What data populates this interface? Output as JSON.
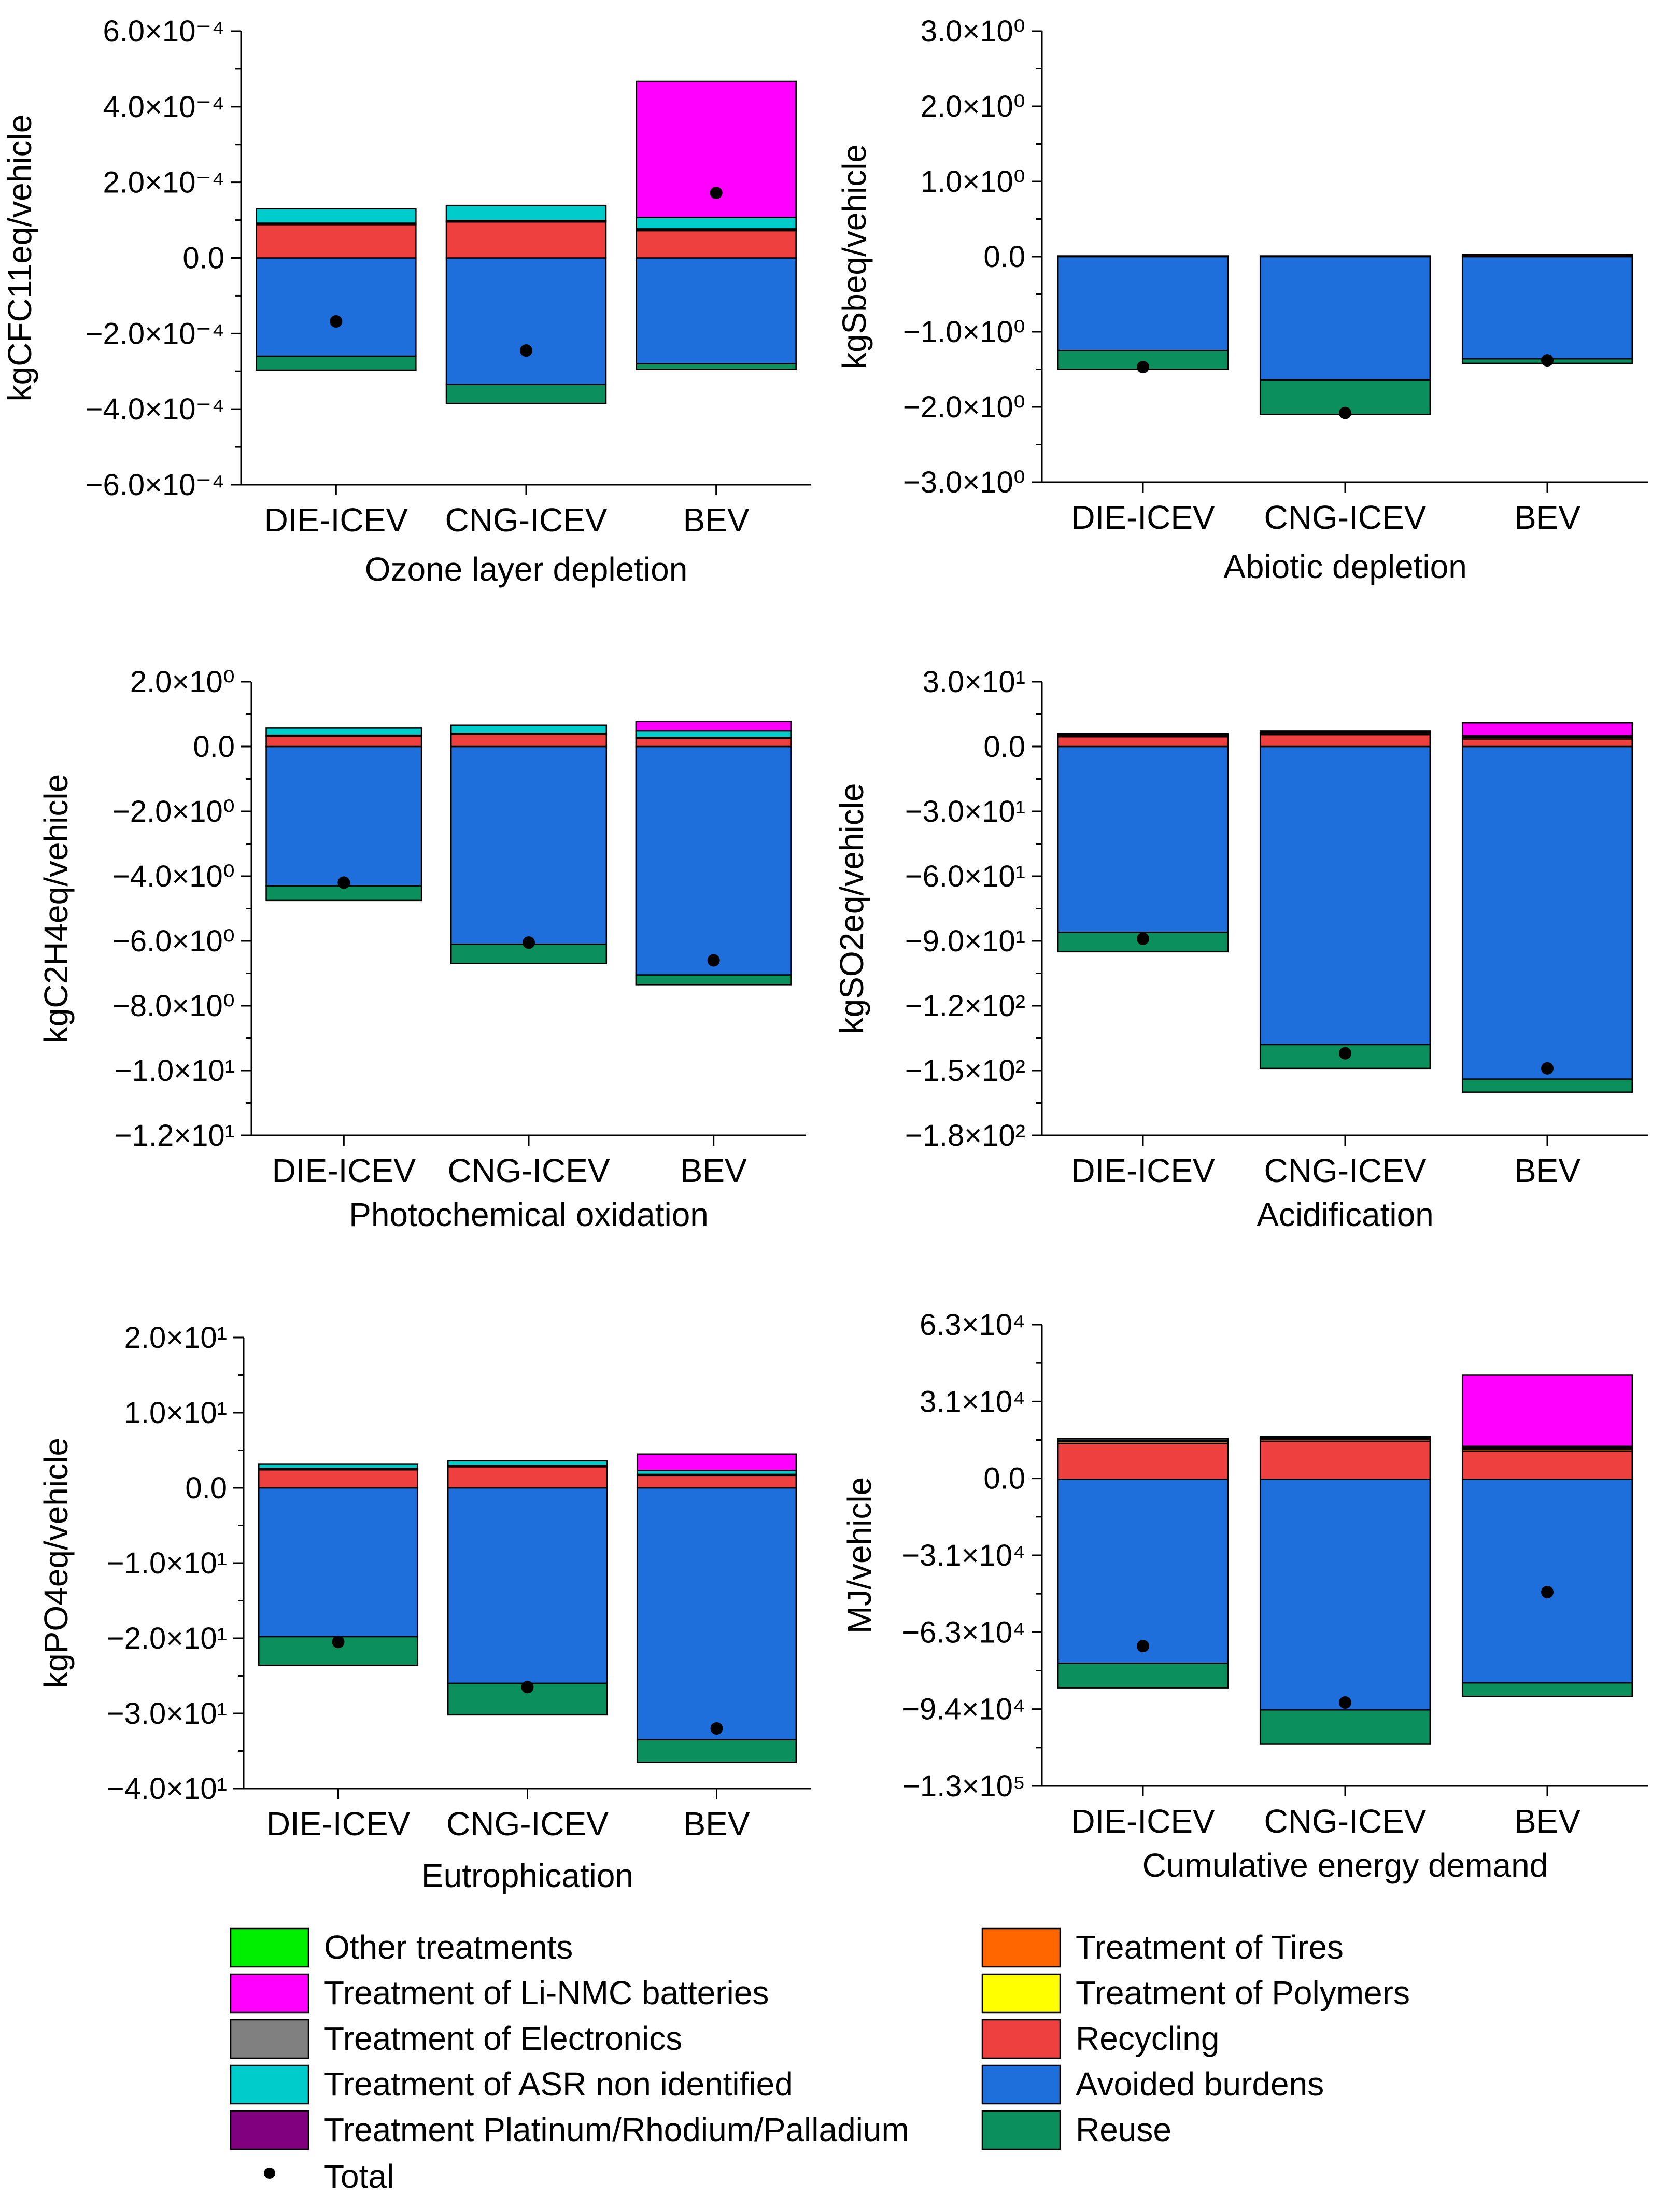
{
  "legend": {
    "items": [
      {
        "label": "Other treatments",
        "color": "#00ee00"
      },
      {
        "label": "Treatment of Tires",
        "color": "#ff6600"
      },
      {
        "label": "Treatment of Li-NMC batteries",
        "color": "#ff00ff"
      },
      {
        "label": "Treatment of Polymers",
        "color": "#ffff00"
      },
      {
        "label": "Treatment of Electronics",
        "color": "#808080"
      },
      {
        "label": "Recycling",
        "color": "#ef4040"
      },
      {
        "label": "Treatment of ASR non identified",
        "color": "#00cccc"
      },
      {
        "label": "Avoided burdens",
        "color": "#1e6fdc"
      },
      {
        "label": "Treatment Platinum/Rhodium/Palladium",
        "color": "#800080"
      },
      {
        "label": "Reuse",
        "color": "#0b8f5c"
      }
    ],
    "total_label": "Total"
  },
  "chart_data": [
    {
      "type": "bar",
      "stacked": true,
      "title": "Ozone layer depletion",
      "ylabel": "kgCFC11eq/vehicle",
      "categories": [
        "DIE-ICEV",
        "CNG-ICEV",
        "BEV"
      ],
      "ylim": [
        -0.0006,
        0.0006
      ],
      "yticks": [
        "6.0×10⁻⁴",
        "4.0×10⁻⁴",
        "2.0×10⁻⁴",
        "0.0",
        "−2.0×10⁻⁴",
        "−4.0×10⁻⁴",
        "−6.0×10⁻⁴"
      ],
      "series": [
        {
          "name": "Avoided burdens",
          "values": [
            -0.00026,
            -0.000335,
            -0.00028
          ]
        },
        {
          "name": "Reuse",
          "values": [
            -3.7e-05,
            -5e-05,
            -1.5e-05
          ]
        },
        {
          "name": "Recycling",
          "values": [
            8.8e-05,
            9.5e-05,
            7.2e-05
          ]
        },
        {
          "name": "Treatment of Polymers",
          "values": [
            2e-06,
            2e-06,
            2e-06
          ]
        },
        {
          "name": "Treatment of Tires",
          "values": [
            2e-06,
            2e-06,
            3e-06
          ]
        },
        {
          "name": "Treatment of ASR non identified",
          "values": [
            3.8e-05,
            4e-05,
            3e-05
          ]
        },
        {
          "name": "Treatment of Li-NMC batteries",
          "values": [
            0,
            0,
            0.00036
          ]
        }
      ],
      "total": [
        -0.000168,
        -0.000245,
        0.000172
      ]
    },
    {
      "type": "bar",
      "stacked": true,
      "title": "Abiotic depletion",
      "ylabel": "kgSbeq/vehicle",
      "categories": [
        "DIE-ICEV",
        "CNG-ICEV",
        "BEV"
      ],
      "ylim": [
        -3,
        3
      ],
      "yticks": [
        "3.0×10⁰",
        "2.0×10⁰",
        "1.0×10⁰",
        "0.0",
        "−1.0×10⁰",
        "−2.0×10⁰",
        "−3.0×10⁰"
      ],
      "series": [
        {
          "name": "Avoided burdens",
          "values": [
            -1.25,
            -1.64,
            -1.36
          ]
        },
        {
          "name": "Reuse",
          "values": [
            -0.25,
            -0.46,
            -0.06
          ]
        },
        {
          "name": "Recycling",
          "values": [
            0.01,
            0.01,
            0.02
          ]
        },
        {
          "name": "Treatment of Li-NMC batteries",
          "values": [
            0,
            0,
            0.01
          ]
        }
      ],
      "total": [
        -1.47,
        -2.08,
        -1.38
      ]
    },
    {
      "type": "bar",
      "stacked": true,
      "title": "Photochemical oxidation",
      "ylabel": "kgC2H4eq/vehicle",
      "categories": [
        "DIE-ICEV",
        "CNG-ICEV",
        "BEV"
      ],
      "ylim": [
        -12,
        2
      ],
      "yticks": [
        "2.0×10⁰",
        "0.0",
        "−2.0×10⁰",
        "−4.0×10⁰",
        "−6.0×10⁰",
        "−8.0×10⁰",
        "−1.0×10¹",
        "−1.2×10¹"
      ],
      "series": [
        {
          "name": "Avoided burdens",
          "values": [
            -4.3,
            -6.1,
            -7.05
          ]
        },
        {
          "name": "Reuse",
          "values": [
            -0.45,
            -0.6,
            -0.3
          ]
        },
        {
          "name": "Recycling",
          "values": [
            0.32,
            0.38,
            0.25
          ]
        },
        {
          "name": "Treatment of Tires",
          "values": [
            0.03,
            0.03,
            0.03
          ]
        },
        {
          "name": "Treatment of ASR non identified",
          "values": [
            0.22,
            0.25,
            0.2
          ]
        },
        {
          "name": "Treatment of Li-NMC batteries",
          "values": [
            0,
            0,
            0.3
          ]
        }
      ],
      "total": [
        -4.2,
        -6.05,
        -6.6
      ]
    },
    {
      "type": "bar",
      "stacked": true,
      "title": "Acidification",
      "ylabel": "kgSO2eq/vehicle",
      "categories": [
        "DIE-ICEV",
        "CNG-ICEV",
        "BEV"
      ],
      "ylim": [
        -180,
        30
      ],
      "yticks": [
        "3.0×10¹",
        "0.0",
        "−3.0×10¹",
        "−6.0×10¹",
        "−9.0×10¹",
        "−1.2×10²",
        "−1.5×10²",
        "−1.8×10²"
      ],
      "series": [
        {
          "name": "Avoided burdens",
          "values": [
            -86,
            -138,
            -154
          ]
        },
        {
          "name": "Reuse",
          "values": [
            -9,
            -11,
            -6
          ]
        },
        {
          "name": "Recycling",
          "values": [
            4.5,
            5.5,
            3.5
          ]
        },
        {
          "name": "Treatment of Tires",
          "values": [
            0.7,
            0.7,
            0.7
          ]
        },
        {
          "name": "Treatment of ASR non identified",
          "values": [
            0.5,
            0.6,
            0.5
          ]
        },
        {
          "name": "Treatment Platinum/Rhodium/Palladium",
          "values": [
            0.3,
            0.3,
            0.3
          ]
        },
        {
          "name": "Treatment of Li-NMC batteries",
          "values": [
            0,
            0,
            6
          ]
        }
      ],
      "total": [
        -89,
        -142,
        -149
      ]
    },
    {
      "type": "bar",
      "stacked": true,
      "title": "Eutrophication",
      "ylabel": "kgPO4eq/vehicle",
      "categories": [
        "DIE-ICEV",
        "CNG-ICEV",
        "BEV"
      ],
      "ylim": [
        -40,
        20
      ],
      "yticks": [
        "2.0×10¹",
        "1.0×10¹",
        "0.0",
        "−1.0×10¹",
        "−2.0×10¹",
        "−3.0×10¹",
        "−4.0×10¹"
      ],
      "series": [
        {
          "name": "Avoided burdens",
          "values": [
            -19.8,
            -26,
            -33.5
          ]
        },
        {
          "name": "Reuse",
          "values": [
            -3.8,
            -4.2,
            -3
          ]
        },
        {
          "name": "Recycling",
          "values": [
            2.4,
            2.8,
            1.6
          ]
        },
        {
          "name": "Treatment of Tires",
          "values": [
            0.1,
            0.1,
            0.1
          ]
        },
        {
          "name": "Treatment of ASR non identified",
          "values": [
            0.6,
            0.6,
            0.5
          ]
        },
        {
          "name": "Treatment Platinum/Rhodium/Palladium",
          "values": [
            0.1,
            0.1,
            0.1
          ]
        },
        {
          "name": "Treatment of Li-NMC batteries",
          "values": [
            0,
            0,
            2.2
          ]
        }
      ],
      "total": [
        -20.5,
        -26.5,
        -32
      ]
    },
    {
      "type": "bar",
      "stacked": true,
      "title": "Cumulative energy demand",
      "ylabel": "MJ/vehicle",
      "categories": [
        "DIE-ICEV",
        "CNG-ICEV",
        "BEV"
      ],
      "ylim": [
        -125000,
        63000
      ],
      "yticks": [
        "6.3×10⁴",
        "3.1×10⁴",
        "0.0",
        "−3.1×10⁴",
        "−6.3×10⁴",
        "−9.4×10⁴",
        "−1.3×10⁵"
      ],
      "series": [
        {
          "name": "Avoided burdens",
          "values": [
            -75000,
            -94000,
            -83000
          ]
        },
        {
          "name": "Reuse",
          "values": [
            -10000,
            -14000,
            -5500
          ]
        },
        {
          "name": "Recycling",
          "values": [
            14500,
            15500,
            11500
          ]
        },
        {
          "name": "Treatment of Tires",
          "values": [
            800,
            800,
            800
          ]
        },
        {
          "name": "Treatment of Electronics",
          "values": [
            300,
            300,
            300
          ]
        },
        {
          "name": "Treatment of ASR non identified",
          "values": [
            600,
            600,
            500
          ]
        },
        {
          "name": "Treatment Platinum/Rhodium/Palladium",
          "values": [
            300,
            300,
            300
          ]
        },
        {
          "name": "Treatment of Li-NMC batteries",
          "values": [
            0,
            0,
            29000
          ]
        }
      ],
      "total": [
        -68000,
        -91000,
        -46000
      ]
    }
  ]
}
